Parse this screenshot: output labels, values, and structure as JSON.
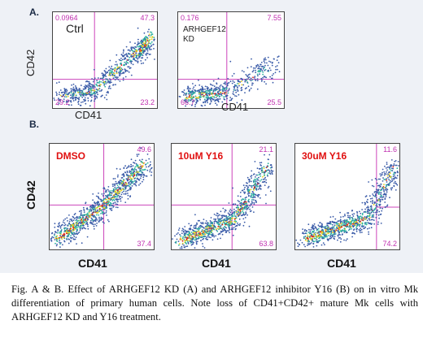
{
  "panel_a": {
    "letter": "A.",
    "y_label": "CD42",
    "x_label": "CD41",
    "plots": [
      {
        "label": "Ctrl",
        "q_ul": "0.0964",
        "q_ur": "47.3",
        "q_ll": "29.2",
        "q_lr": "23.2"
      },
      {
        "label_line1": "ARHGEF12",
        "label_line2": "KD",
        "q_ul": "0.176",
        "q_ur": "7.55",
        "q_ll": "66.7",
        "q_lr": "25.5"
      }
    ]
  },
  "panel_b": {
    "letter": "B.",
    "y_label": "CD42",
    "x_label": "CD41",
    "plots": [
      {
        "label": "DMSO",
        "q_ur": "49.6",
        "q_lr": "37.4"
      },
      {
        "label": "10uM Y16",
        "q_ur": "21.1",
        "q_lr": "63.8"
      },
      {
        "label": "30uM Y16",
        "q_ur": "11.6",
        "q_lr": "74.2"
      }
    ]
  },
  "chart_data": [
    {
      "type": "scatter",
      "title": "Ctrl",
      "xlabel": "CD41",
      "ylabel": "CD42",
      "quadrants": {
        "upper_left": 0.0964,
        "upper_right": 47.3,
        "lower_left": 29.2,
        "lower_right": 23.2
      }
    },
    {
      "type": "scatter",
      "title": "ARHGEF12 KD",
      "xlabel": "CD41",
      "ylabel": "CD42",
      "quadrants": {
        "upper_left": 0.176,
        "upper_right": 7.55,
        "lower_left": 66.7,
        "lower_right": 25.5
      }
    },
    {
      "type": "scatter",
      "title": "DMSO",
      "xlabel": "CD41",
      "ylabel": "CD42",
      "quadrants": {
        "upper_right": 49.6,
        "lower_right": 37.4
      }
    },
    {
      "type": "scatter",
      "title": "10uM Y16",
      "xlabel": "CD41",
      "ylabel": "CD42",
      "quadrants": {
        "upper_right": 21.1,
        "lower_right": 63.8
      }
    },
    {
      "type": "scatter",
      "title": "30uM Y16",
      "xlabel": "CD41",
      "ylabel": "CD42",
      "quadrants": {
        "upper_right": 11.6,
        "lower_right": 74.2
      }
    }
  ],
  "caption": "Fig. A & B. Effect of ARHGEF12 KD (A) and ARHGEF12 inhibitor Y16 (B) on in vitro Mk differentiation of primary human cells. Note loss of CD41+CD42+ mature Mk cells with ARHGEF12 KD and Y16 treatment.",
  "colors": {
    "gate": "#cc44bb",
    "dot_low": "#3a5ba8",
    "dot_mid": "#2bb3a0",
    "dot_high": "#e8d020",
    "dot_peak": "#e02010"
  }
}
